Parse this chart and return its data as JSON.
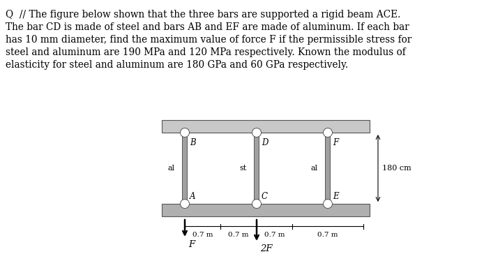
{
  "text_lines": [
    "Q  // The figure below shown that the three bars are supported a rigid beam ACE.",
    "The bar CD is made of steel and bars AB and EF are made of aluminum. If each bar",
    "has 10 mm diameter, find the maximum value of force F if the permissible stress for",
    "steel and aluminum are 190 MPa and 120 MPa respectively. Known the modulus of",
    "elasticity for steel and aluminum are 180 GPa and 60 GPa respectively."
  ],
  "bg_color": "#ffffff",
  "beam_color": "#b0b0b0",
  "wall_color": "#c8c8c8",
  "bar_color": "#a0a0a0",
  "text_fontsize": 9.8,
  "fig_width": 6.94,
  "fig_height": 3.94,
  "dpi": 100
}
